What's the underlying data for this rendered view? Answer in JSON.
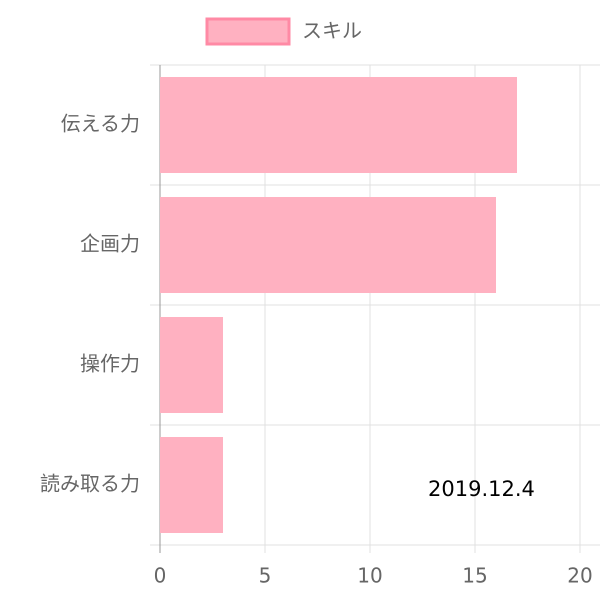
{
  "chart_data": {
    "type": "hbar",
    "categories": [
      "伝える力",
      "企画力",
      "操作力",
      "読み取る力"
    ],
    "series": [
      {
        "name": "スキル",
        "color": "#ffb1c1",
        "border": "#ff8aa5",
        "values": [
          17,
          16,
          3,
          3
        ]
      }
    ],
    "xlim": [
      0,
      20
    ],
    "xticks": [
      0,
      5,
      10,
      15,
      20
    ],
    "grid": true,
    "legend": "top",
    "annotation": "2019.12.4"
  }
}
